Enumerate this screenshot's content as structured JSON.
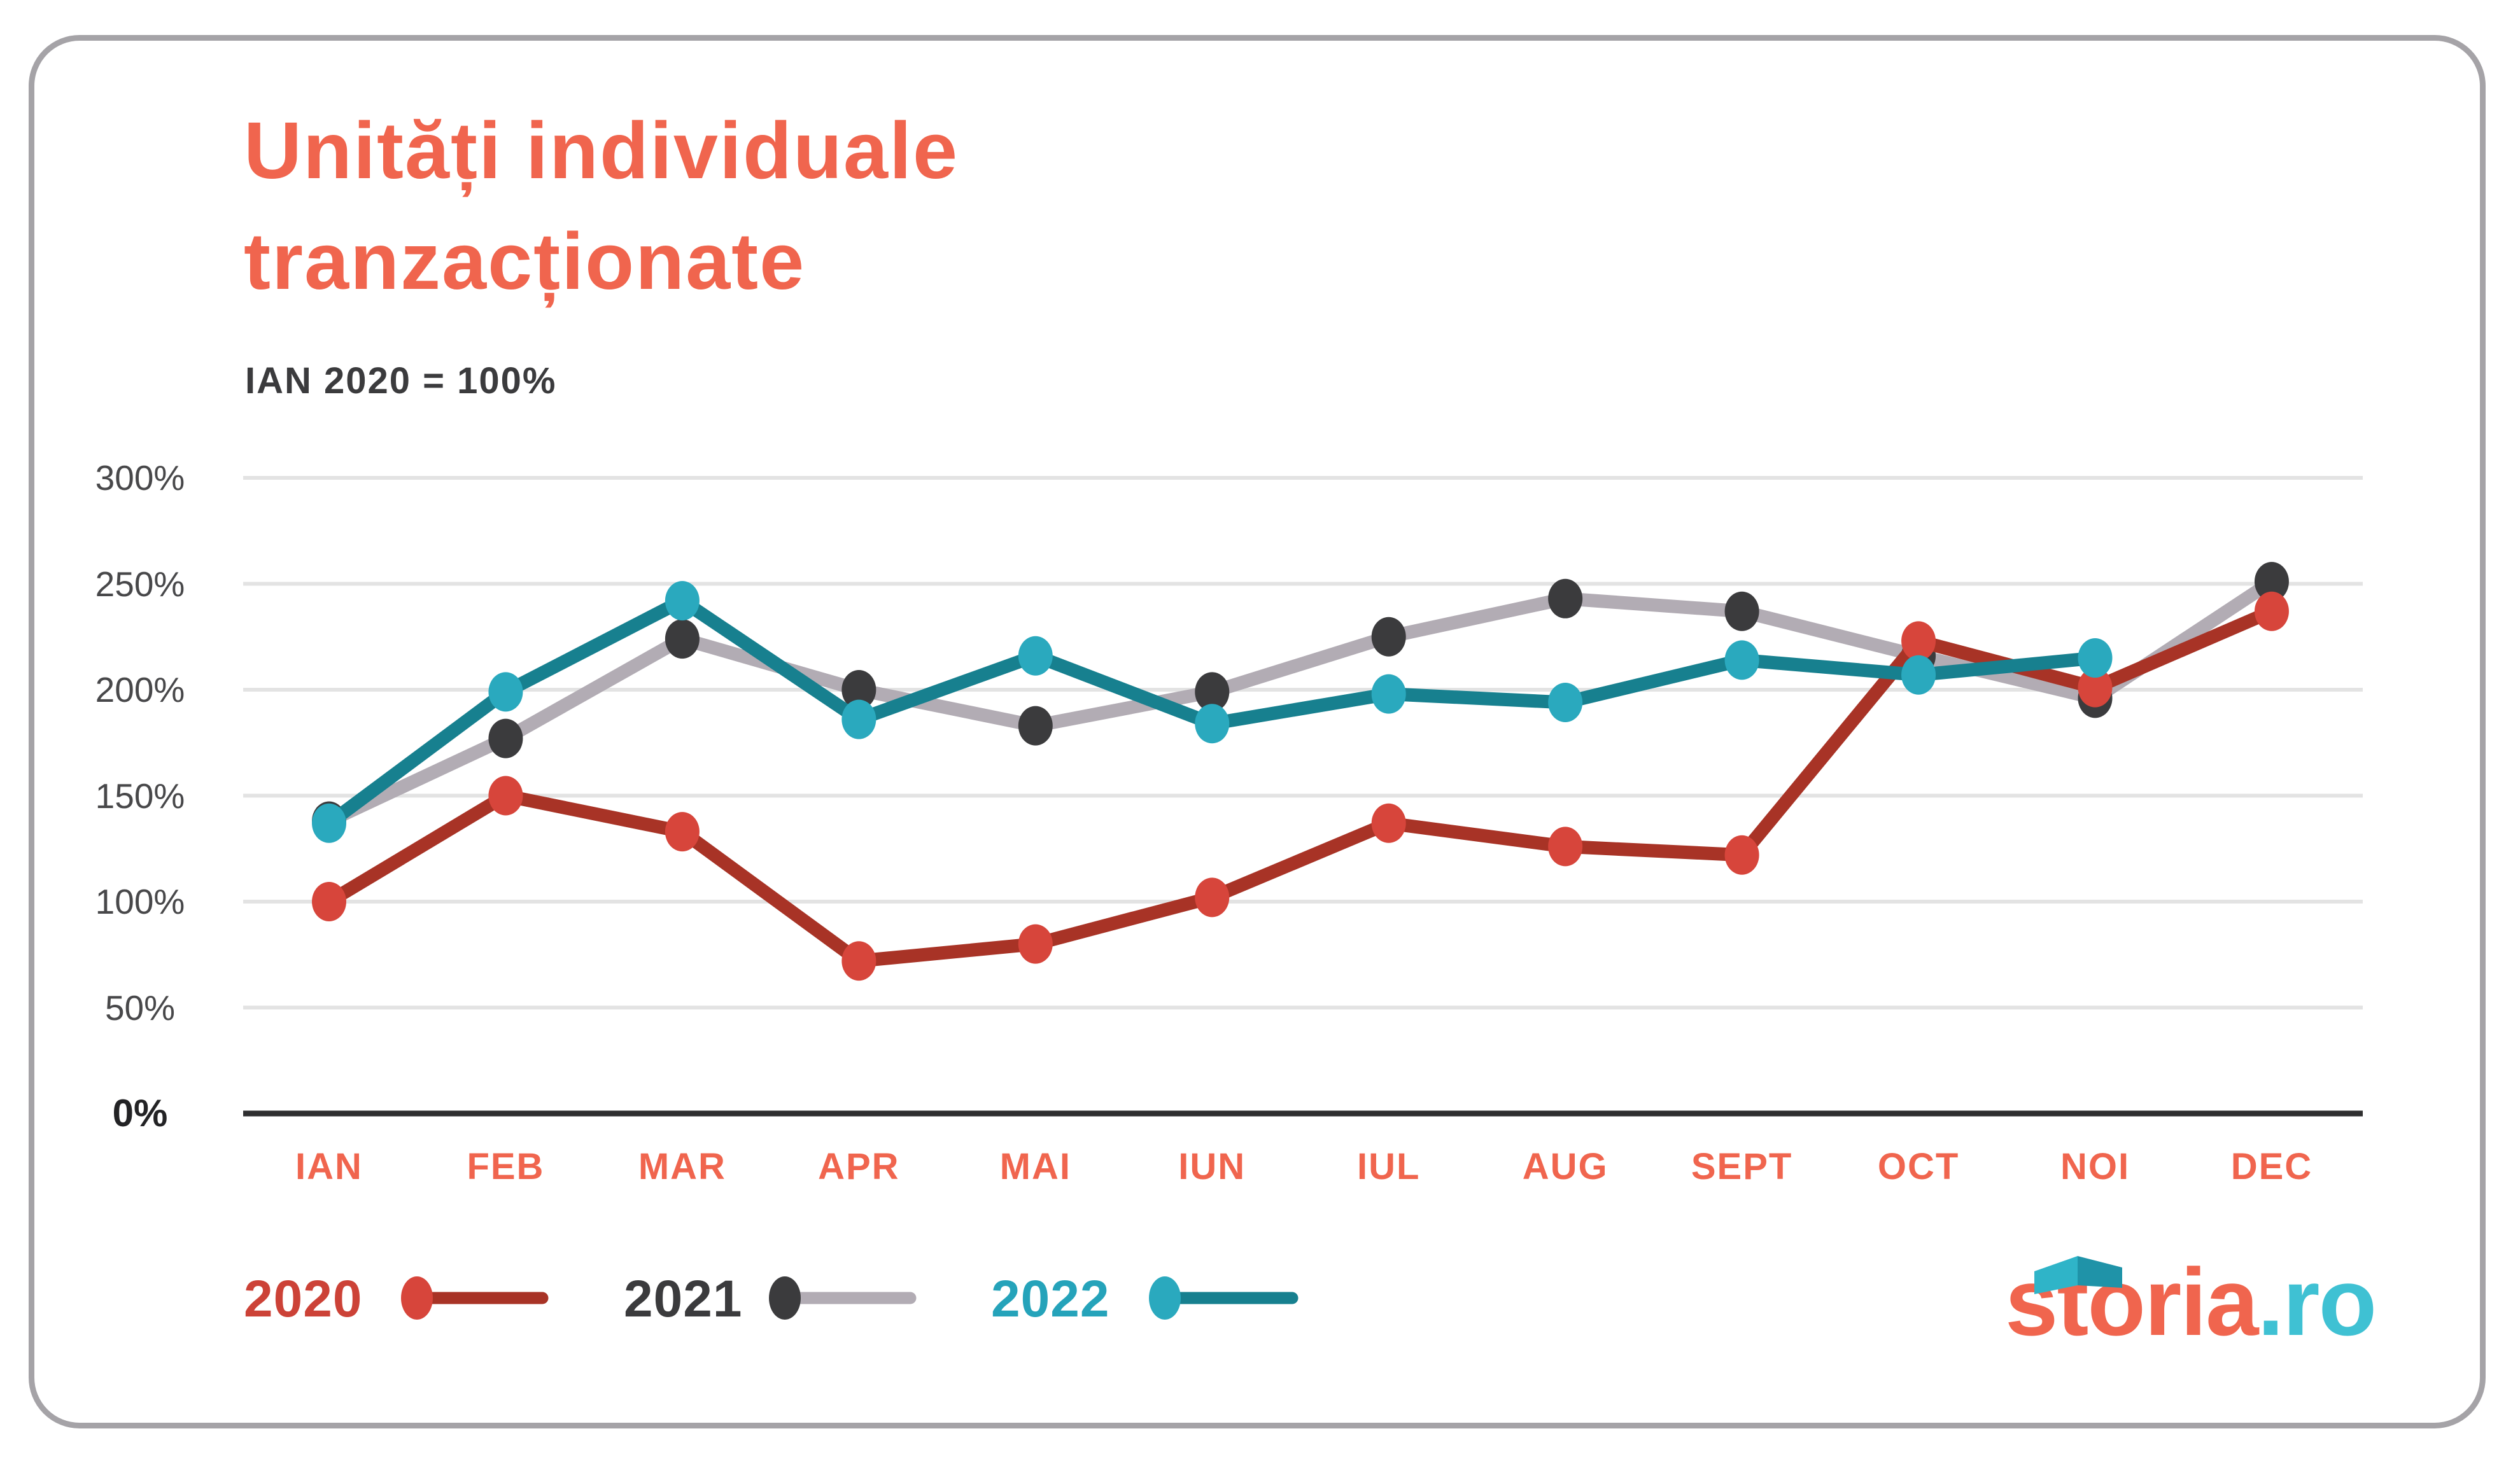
{
  "title": {
    "line1": "Unități individuale",
    "line2": "tranzacționate"
  },
  "subtitle": "IAN 2020 = 100%",
  "chart_data": {
    "type": "line",
    "title": "Unități individuale tranzacționate",
    "subtitle": "IAN 2020 = 100%",
    "xlabel": "",
    "ylabel": "",
    "ylim": [
      0,
      300
    ],
    "grid": "horizontal",
    "legend_position": "bottom-left",
    "ytick_labels": [
      "300%",
      "250%",
      "200%",
      "150%",
      "100%",
      "50%",
      "0%"
    ],
    "ytick_values": [
      300,
      250,
      200,
      150,
      100,
      50,
      0
    ],
    "categories": [
      "IAN",
      "FEB",
      "MAR",
      "APR",
      "MAI",
      "IUN",
      "IUL",
      "AUG",
      "SEPT",
      "OCT",
      "NOI",
      "DEC"
    ],
    "series": [
      {
        "name": "2020",
        "values": [
          100,
          150,
          133,
          72,
          80,
          102,
          137,
          126,
          122,
          223,
          201,
          237
        ],
        "dot_color": "#D7453B",
        "line_color": "#A83326",
        "label_color": "#CC4237"
      },
      {
        "name": "2021",
        "values": [
          138,
          177,
          224,
          200,
          183,
          199,
          225,
          243,
          237,
          216,
          196,
          251
        ],
        "dot_color": "#3B3B3D",
        "line_color": "#B2ACB4",
        "label_color": "#3B3B3D"
      },
      {
        "name": "2022",
        "values": [
          137,
          199,
          242,
          186,
          216,
          184,
          198,
          194,
          214,
          207,
          215,
          null
        ],
        "dot_color": "#2AA9BE",
        "line_color": "#17808F",
        "label_color": "#25A3BA"
      }
    ]
  },
  "colors": {
    "accent_coral": "#F0654E",
    "gridline": "#E3E3E3",
    "axis_line": "#2F2F30",
    "card_border": "#A5A3A7",
    "logo_teal": "#3FC1D3"
  },
  "logo": {
    "brand": "storia",
    "tld": ".ro"
  }
}
